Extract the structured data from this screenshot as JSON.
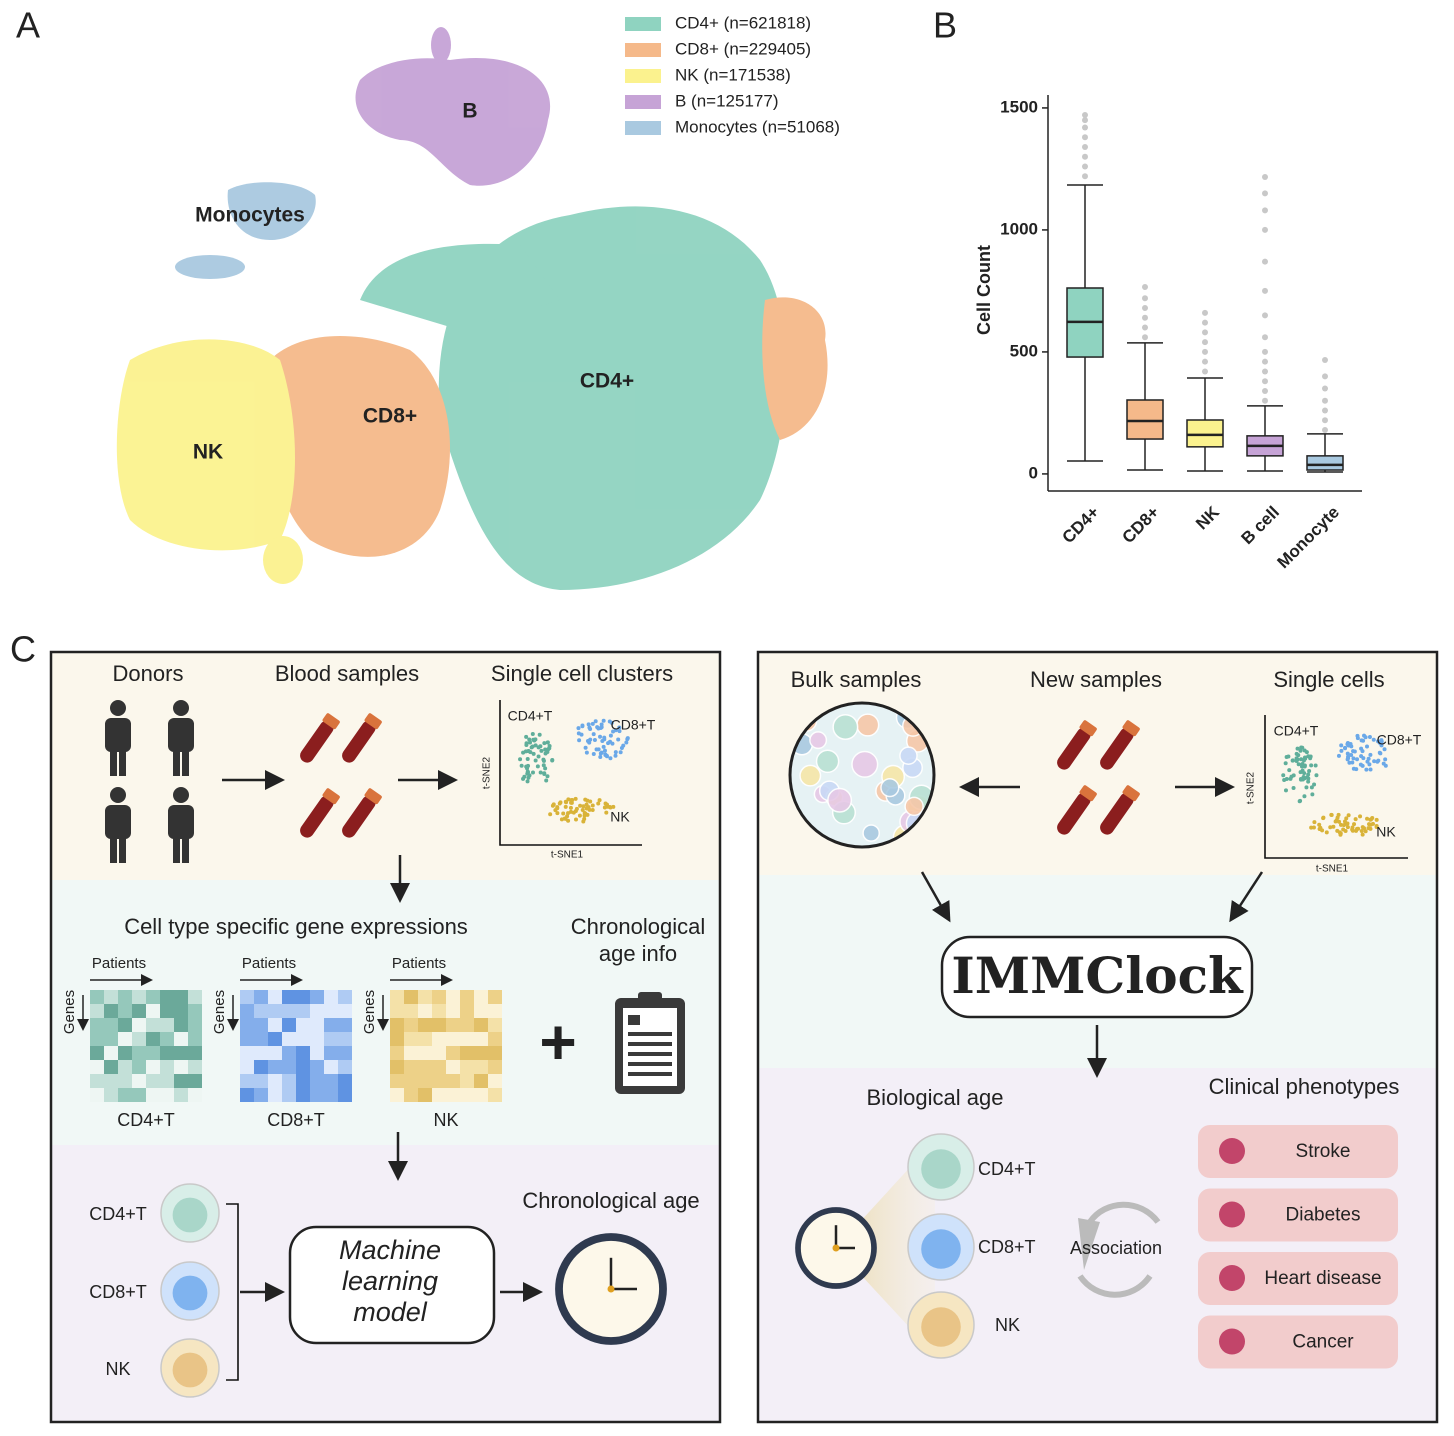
{
  "panel_labels": [
    "A",
    "B",
    "C"
  ],
  "tsne": {
    "legend": [
      {
        "name": "CD4+ (n=621818)",
        "color": "#8fd3c0"
      },
      {
        "name": "CD8+ (n=229405)",
        "color": "#f5b98a"
      },
      {
        "name": "NK (n=171538)",
        "color": "#fbf28e"
      },
      {
        "name": "B (n=125177)",
        "color": "#c6a3d6"
      },
      {
        "name": "Monocytes (n=51068)",
        "color": "#a9c9e0"
      }
    ],
    "cluster_labels": [
      "CD4+",
      "CD8+",
      "NK",
      "B",
      "Monocytes"
    ]
  },
  "chart_data": {
    "type": "box",
    "y_label": "Cell Count",
    "categories": [
      "CD4+",
      "CD8+",
      "NK",
      "B cell",
      "Monocyte"
    ],
    "colors": [
      "#8fd3c0",
      "#f5b98a",
      "#fbf28e",
      "#c6a3d6",
      "#a9c9e0"
    ],
    "boxes": [
      {
        "low": 53,
        "q1": 479,
        "median": 623,
        "q3": 762,
        "high": 1184,
        "outliers": [
          1220,
          1260,
          1300,
          1340,
          1380,
          1420,
          1450,
          1471
        ]
      },
      {
        "low": 16,
        "q1": 143,
        "median": 217,
        "q3": 303,
        "high": 537,
        "outliers": [
          560,
          600,
          640,
          680,
          720,
          766
        ]
      },
      {
        "low": 12,
        "q1": 111,
        "median": 160,
        "q3": 221,
        "high": 393,
        "outliers": [
          420,
          460,
          500,
          540,
          580,
          620,
          660
        ]
      },
      {
        "low": 12,
        "q1": 74,
        "median": 115,
        "q3": 156,
        "high": 279,
        "outliers": [
          300,
          340,
          380,
          420,
          460,
          500,
          560,
          650,
          750,
          870,
          1000,
          1080,
          1150,
          1217
        ]
      },
      {
        "low": 8,
        "q1": 16,
        "median": 37,
        "q3": 74,
        "high": 164,
        "outliers": [
          180,
          220,
          260,
          300,
          350,
          400,
          467
        ]
      }
    ],
    "ylim": [
      -70,
      1553
    ],
    "yticks": [
      0,
      500,
      1000,
      1500
    ]
  },
  "training": {
    "steps": [
      "Donors",
      "Blood samples",
      "Single cell clusters"
    ],
    "cluster_plot": {
      "labels": [
        "CD4+T",
        "CD8+T",
        "NK"
      ],
      "x_label": "t-SNE1",
      "y_label": "t-SNE2"
    },
    "expressions_title": "Cell type specific gene expressions",
    "age_info": [
      "Chronological",
      "age info"
    ],
    "heatmap_x": "Patients",
    "heatmap_y": "Genes",
    "heatmaps": [
      "CD4+T",
      "CD8+T",
      "NK"
    ],
    "plus": "+",
    "cell_types": [
      "CD4+T",
      "CD8+T",
      "NK"
    ],
    "model": [
      "Machine",
      "learning",
      "model"
    ],
    "output": "Chronological age"
  },
  "application": {
    "steps": [
      "Bulk samples",
      "New samples",
      "Single cells"
    ],
    "cluster_plot": {
      "labels": [
        "CD4+T",
        "CD8+T",
        "NK"
      ],
      "x_label": "t-SNE1",
      "y_label": "t-SNE2"
    },
    "model": "IMMClock",
    "biological_age": "Biological age",
    "cell_types": [
      "CD4+T",
      "CD8+T",
      "NK"
    ],
    "association": "Association",
    "phenotypes_title": "Clinical phenotypes",
    "phenotypes": [
      "Stroke",
      "Diabetes",
      "Heart disease",
      "Cancer"
    ]
  }
}
